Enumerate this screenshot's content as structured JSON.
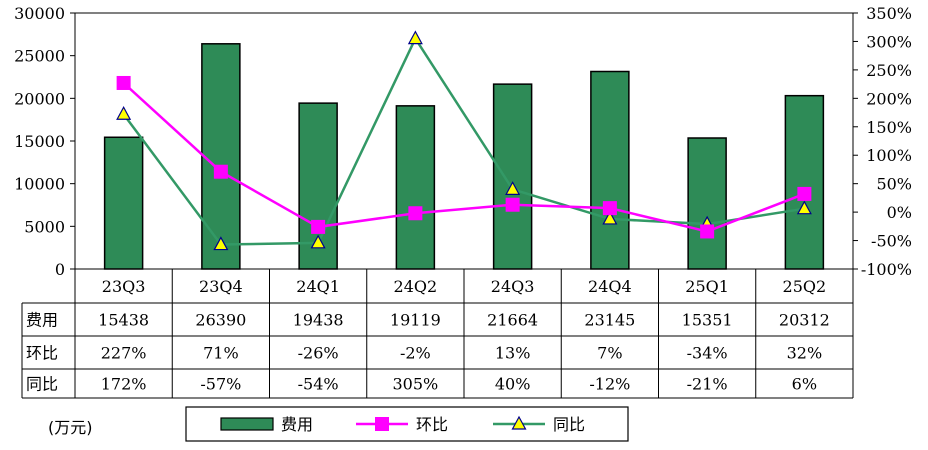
{
  "chart_data": {
    "type": "bar",
    "categories": [
      "23Q3",
      "23Q4",
      "24Q1",
      "24Q2",
      "24Q3",
      "24Q4",
      "25Q1",
      "25Q2"
    ],
    "series": [
      {
        "name": "费用",
        "kind": "bar",
        "axis": "left",
        "values": [
          15438,
          26390,
          19438,
          19119,
          21664,
          23145,
          15351,
          20312
        ],
        "display": [
          "15438",
          "26390",
          "19438",
          "19119",
          "21664",
          "23145",
          "15351",
          "20312"
        ]
      },
      {
        "name": "环比",
        "kind": "line",
        "axis": "right",
        "values": [
          227,
          71,
          -26,
          -2,
          13,
          7,
          -34,
          32
        ],
        "display": [
          "227%",
          "71%",
          "-26%",
          "-2%",
          "13%",
          "7%",
          "-34%",
          "32%"
        ]
      },
      {
        "name": "同比",
        "kind": "line",
        "axis": "right",
        "values": [
          172,
          -57,
          -54,
          305,
          40,
          -12,
          -21,
          6
        ],
        "display": [
          "172%",
          "-57%",
          "-54%",
          "305%",
          "40%",
          "-12%",
          "-21%",
          "6%"
        ]
      }
    ],
    "y_left": {
      "min": 0,
      "max": 30000,
      "ticks": [
        "0",
        "5000",
        "10000",
        "15000",
        "20000",
        "25000",
        "30000"
      ]
    },
    "y_right": {
      "min": -100,
      "max": 350,
      "ticks": [
        "-100%",
        "-50%",
        "0%",
        "50%",
        "100%",
        "150%",
        "200%",
        "250%",
        "300%",
        "350%"
      ]
    },
    "unit_label": "(万元)",
    "legend_position": "bottom"
  },
  "colors": {
    "bar_fill": "#2e8b57",
    "bar_stroke": "#000000",
    "mom_line": "#ff00ff",
    "yoy_line": "#339966",
    "yoy_marker": "#ffff00"
  }
}
